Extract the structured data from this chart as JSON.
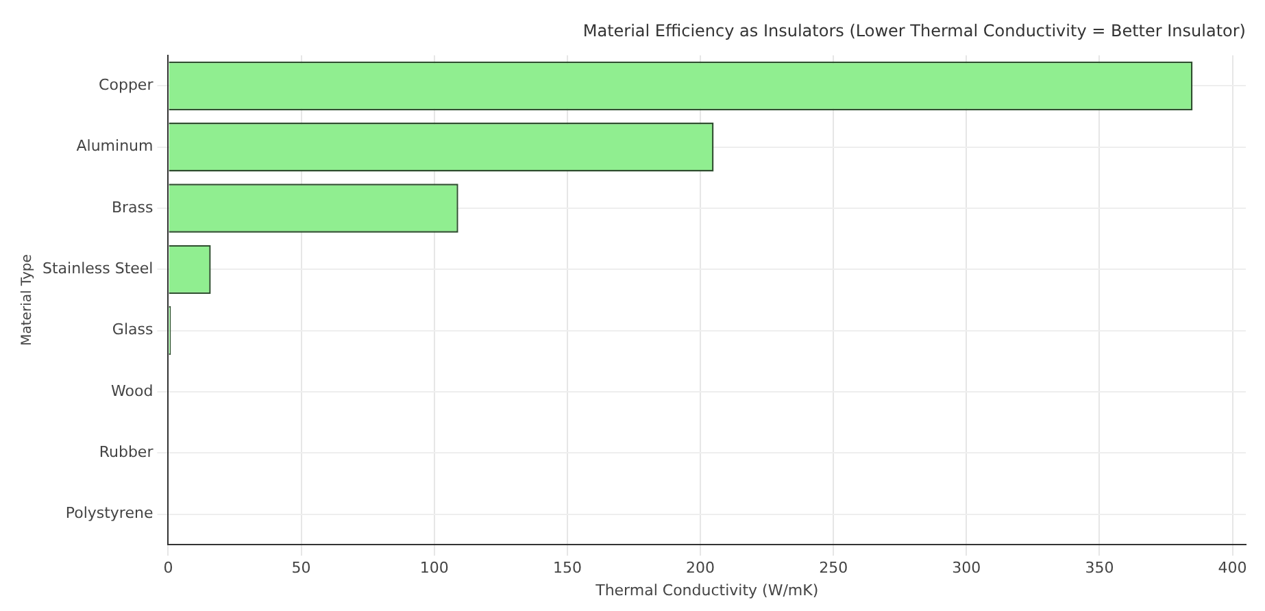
{
  "chart_data": {
    "type": "bar",
    "orientation": "horizontal",
    "title": "Material Efficiency as Insulators (Lower Thermal Conductivity = Better Insulator)",
    "xlabel": "Thermal Conductivity (W/mK)",
    "ylabel": "Material Type",
    "categories": [
      "Copper",
      "Aluminum",
      "Brass",
      "Stainless Steel",
      "Glass",
      "Wood",
      "Rubber",
      "Polystyrene"
    ],
    "values": [
      385,
      205,
      109,
      16,
      1,
      null,
      null,
      null
    ],
    "color": "#90ee90",
    "xlim": [
      0,
      405
    ],
    "xticks": [
      0,
      50,
      100,
      150,
      200,
      250,
      300,
      350,
      400
    ],
    "grid": true,
    "legend": false
  }
}
